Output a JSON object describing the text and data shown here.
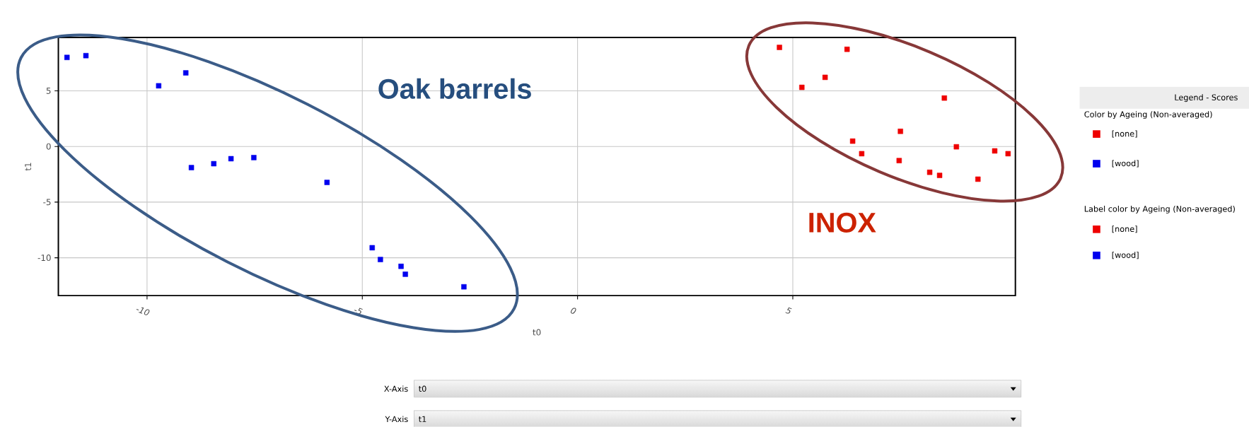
{
  "chart_data": {
    "type": "scatter",
    "xlabel": "t0",
    "ylabel": "t1",
    "legend_title": "Legend - Scores",
    "annotations": [
      "Oak barrels",
      "INOX",
      "Color by Ageing (Non-averaged)",
      "Label color by Ageing (Non-averaged)",
      "X-Axis",
      "t0",
      "Y-Axis",
      "t1"
    ],
    "series": [
      {
        "name": "[none]",
        "color": "#ee0000",
        "x": [
          4.69,
          5.21,
          5.75,
          6.26,
          8.52,
          6.39,
          6.6,
          7.5,
          7.47,
          8.8,
          8.18,
          8.41,
          9.3,
          9.69,
          10.0
        ],
        "values": [
          8.9,
          5.31,
          6.21,
          8.73,
          4.35,
          0.48,
          -0.65,
          1.36,
          -1.27,
          -0.03,
          -2.32,
          -2.6,
          -2.94,
          -0.4,
          -0.65
        ]
      },
      {
        "name": "[wood]",
        "color": "#0000ee",
        "x": [
          -11.86,
          -11.42,
          -9.73,
          -9.1,
          -8.97,
          -8.45,
          -8.05,
          -7.52,
          -5.82,
          -4.77,
          -4.58,
          -4.1,
          -4.0,
          -2.64
        ],
        "values": [
          8.0,
          8.16,
          5.45,
          6.61,
          -1.9,
          -1.55,
          -1.1,
          -1.0,
          -3.23,
          -9.1,
          -10.16,
          -10.77,
          -11.48,
          -12.61
        ]
      }
    ],
    "xlim": [
      -12.06,
      10.17
    ],
    "ylim": [
      -13.4,
      9.8
    ],
    "xticks": [
      -10,
      -5,
      0,
      5
    ],
    "yticks": [
      -10,
      -5,
      0,
      5
    ],
    "grid": true,
    "legend": "right",
    "marker": "square"
  }
}
